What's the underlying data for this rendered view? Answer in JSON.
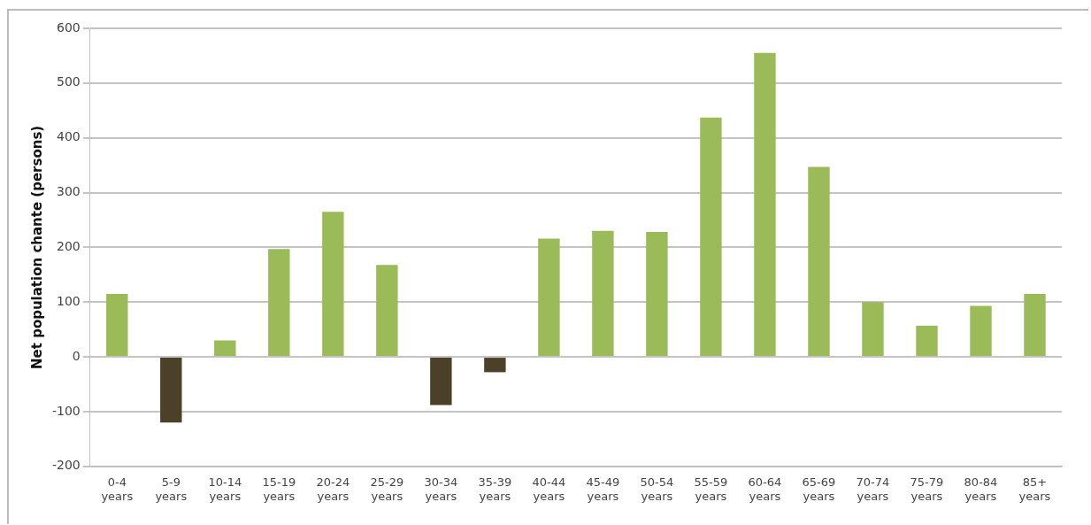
{
  "chart_data": {
    "type": "bar",
    "ylabel": "Net population chante (persons)",
    "categories": [
      "0-4 years",
      "5-9 years",
      "10-14 years",
      "15-19 years",
      "20-24 years",
      "25-29 years",
      "30-34 years",
      "35-39 years",
      "40-44 years",
      "45-49 years",
      "50-54 years",
      "55-59 years",
      "60-64 years",
      "65-69 years",
      "70-74 years",
      "75-79 years",
      "80-84 years",
      "85+ years"
    ],
    "values": [
      115,
      -120,
      30,
      197,
      265,
      168,
      -88,
      -28,
      216,
      230,
      228,
      437,
      555,
      347,
      100,
      57,
      93,
      115
    ],
    "colors": [
      "#9bbb59",
      "#4a4128",
      "#9bbb59",
      "#9bbb59",
      "#9bbb59",
      "#9bbb59",
      "#4a4128",
      "#4a4128",
      "#9bbb59",
      "#9bbb59",
      "#9bbb59",
      "#9bbb59",
      "#9bbb59",
      "#9bbb59",
      "#9bbb59",
      "#9bbb59",
      "#9bbb59",
      "#9bbb59"
    ],
    "ylim": [
      -200,
      600
    ],
    "yticks": [
      -200,
      -100,
      0,
      100,
      200,
      300,
      400,
      500,
      600
    ],
    "grid": "y",
    "legend": false
  }
}
